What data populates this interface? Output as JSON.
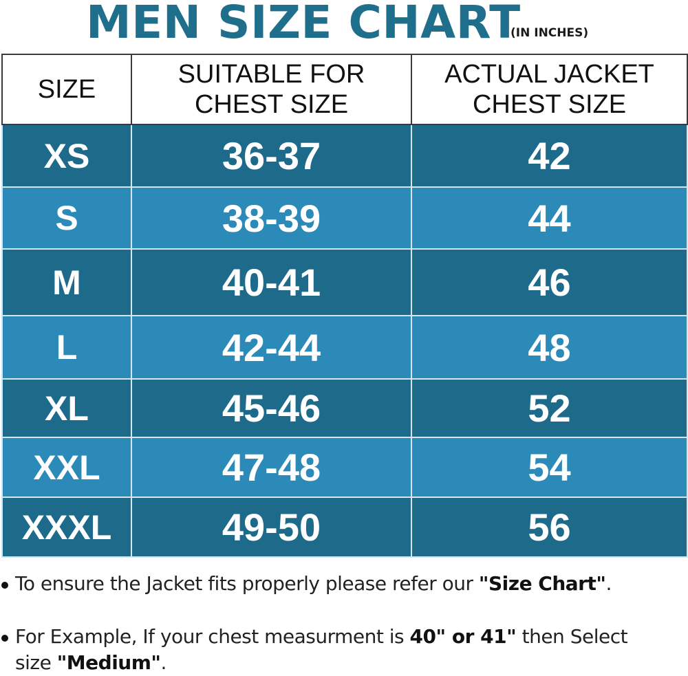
{
  "title": "MEN SIZE CHART",
  "title_unit": "(IN INCHES)",
  "table": {
    "headers": [
      "SIZE",
      "SUITABLE FOR CHEST SIZE",
      "ACTUAL JACKET CHEST SIZE"
    ],
    "rows": [
      {
        "size": "XS",
        "suitable": "36-37",
        "actual": "42"
      },
      {
        "size": "S",
        "suitable": "38-39",
        "actual": "44"
      },
      {
        "size": "M",
        "suitable": "40-41",
        "actual": "46"
      },
      {
        "size": "L",
        "suitable": "42-44",
        "actual": "48"
      },
      {
        "size": "XL",
        "suitable": "45-46",
        "actual": "52"
      },
      {
        "size": "XXL",
        "suitable": "47-48",
        "actual": "54"
      },
      {
        "size": "XXXL",
        "suitable": "49-50",
        "actual": "56"
      }
    ]
  },
  "notes": {
    "note1": {
      "text_before": "To ensure the Jacket fits properly please refer our ",
      "bold": "\"Size Chart\"",
      "text_after": "."
    },
    "note2": {
      "text_before": "For Example, If your chest measurment is ",
      "bold1": "40\" or 41\"",
      "text_middle": " then Select size ",
      "bold2": "\"Medium\"",
      "text_after": "."
    }
  },
  "colors": {
    "title": "#1f6e8c",
    "row_dark": "#1d6a8a",
    "row_light": "#2c8ab8"
  }
}
